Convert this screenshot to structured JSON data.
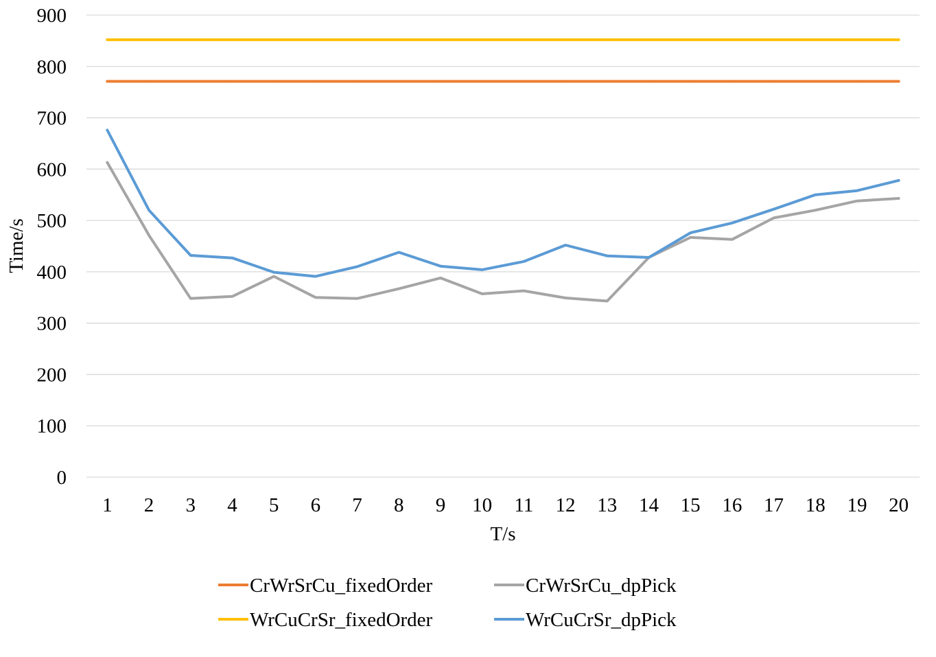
{
  "chart_data": {
    "type": "line",
    "title": "",
    "xlabel": "T/s",
    "ylabel": "Time/s",
    "ylim": [
      0,
      900
    ],
    "yticks": [
      0,
      100,
      200,
      300,
      400,
      500,
      600,
      700,
      800,
      900
    ],
    "grid": "horizontal",
    "legend_position": "bottom",
    "categories": [
      "1",
      "2",
      "3",
      "4",
      "5",
      "6",
      "7",
      "8",
      "9",
      "10",
      "11",
      "12",
      "13",
      "14",
      "15",
      "16",
      "17",
      "18",
      "19",
      "20"
    ],
    "series": [
      {
        "name": "CrWrSrCu_fixedOrder",
        "color": "#ed7d31",
        "values": [
          771,
          771,
          771,
          771,
          771,
          771,
          771,
          771,
          771,
          771,
          771,
          771,
          771,
          771,
          771,
          771,
          771,
          771,
          771,
          771
        ]
      },
      {
        "name": "CrWrSrCu_dpPick",
        "color": "#a5a5a5",
        "values": [
          613,
          471,
          348,
          352,
          391,
          350,
          348,
          367,
          388,
          357,
          363,
          349,
          343,
          428,
          467,
          463,
          505,
          520,
          538,
          543
        ]
      },
      {
        "name": "WrCuCrSr_fixedOrder",
        "color": "#ffc000",
        "values": [
          852,
          852,
          852,
          852,
          852,
          852,
          852,
          852,
          852,
          852,
          852,
          852,
          852,
          852,
          852,
          852,
          852,
          852,
          852,
          852
        ]
      },
      {
        "name": "WrCuCrSr_dpPick",
        "color": "#5b9bd5",
        "values": [
          676,
          520,
          432,
          427,
          399,
          391,
          410,
          438,
          411,
          404,
          420,
          452,
          431,
          428,
          476,
          495,
          522,
          550,
          558,
          578
        ]
      }
    ]
  }
}
